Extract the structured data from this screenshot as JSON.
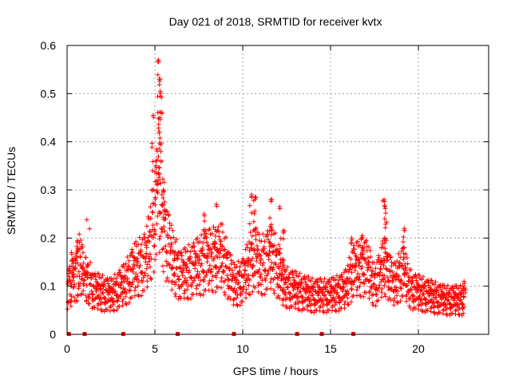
{
  "chart_data": {
    "type": "scatter",
    "title": "Day 021 of 2018, SRMTID for receiver kvtx",
    "xlabel": "GPS time / hours",
    "ylabel": "SRMTID / TECUs",
    "xlim": [
      0,
      24
    ],
    "ylim": [
      0,
      0.6
    ],
    "x_ticks": [
      {
        "value": 0,
        "label": "0"
      },
      {
        "value": 5,
        "label": "5"
      },
      {
        "value": 10,
        "label": "10"
      },
      {
        "value": 15,
        "label": "15"
      },
      {
        "value": 20,
        "label": "20"
      }
    ],
    "y_ticks": [
      {
        "value": 0,
        "label": "0"
      },
      {
        "value": 0.1,
        "label": "0.1"
      },
      {
        "value": 0.2,
        "label": "0.2"
      },
      {
        "value": 0.3,
        "label": "0.3"
      },
      {
        "value": 0.4,
        "label": "0.4"
      },
      {
        "value": 0.5,
        "label": "0.5"
      },
      {
        "value": 0.6,
        "label": "0.6"
      }
    ],
    "grid": true,
    "marker": "+",
    "series_color": "#ff0000",
    "baseline_markers_x": [
      0.1,
      1.0,
      3.2,
      6.3,
      9.5,
      13.1,
      14.5,
      16.3
    ],
    "envelope": [
      {
        "x": 0.0,
        "y": 0.09
      },
      {
        "x": 0.5,
        "y": 0.12
      },
      {
        "x": 0.8,
        "y": 0.14
      },
      {
        "x": 1.5,
        "y": 0.09
      },
      {
        "x": 2.5,
        "y": 0.08
      },
      {
        "x": 3.2,
        "y": 0.1
      },
      {
        "x": 3.8,
        "y": 0.13
      },
      {
        "x": 4.5,
        "y": 0.15
      },
      {
        "x": 4.9,
        "y": 0.22
      },
      {
        "x": 5.2,
        "y": 0.3
      },
      {
        "x": 5.6,
        "y": 0.2
      },
      {
        "x": 6.0,
        "y": 0.15
      },
      {
        "x": 6.5,
        "y": 0.12
      },
      {
        "x": 7.0,
        "y": 0.13
      },
      {
        "x": 8.0,
        "y": 0.15
      },
      {
        "x": 8.8,
        "y": 0.16
      },
      {
        "x": 9.5,
        "y": 0.1
      },
      {
        "x": 10.0,
        "y": 0.11
      },
      {
        "x": 10.6,
        "y": 0.16
      },
      {
        "x": 11.0,
        "y": 0.14
      },
      {
        "x": 11.7,
        "y": 0.16
      },
      {
        "x": 12.3,
        "y": 0.1
      },
      {
        "x": 13.0,
        "y": 0.09
      },
      {
        "x": 14.0,
        "y": 0.08
      },
      {
        "x": 15.0,
        "y": 0.08
      },
      {
        "x": 15.8,
        "y": 0.09
      },
      {
        "x": 16.3,
        "y": 0.13
      },
      {
        "x": 17.0,
        "y": 0.14
      },
      {
        "x": 17.5,
        "y": 0.1
      },
      {
        "x": 18.1,
        "y": 0.14
      },
      {
        "x": 18.6,
        "y": 0.1
      },
      {
        "x": 19.1,
        "y": 0.13
      },
      {
        "x": 19.6,
        "y": 0.09
      },
      {
        "x": 20.5,
        "y": 0.08
      },
      {
        "x": 21.5,
        "y": 0.07
      },
      {
        "x": 22.6,
        "y": 0.07
      }
    ],
    "spikes": [
      {
        "x": 0.25,
        "y": 0.17
      },
      {
        "x": 0.6,
        "y": 0.195
      },
      {
        "x": 4.9,
        "y": 0.455
      },
      {
        "x": 5.05,
        "y": 0.35
      },
      {
        "x": 5.2,
        "y": 0.57
      },
      {
        "x": 5.25,
        "y": 0.53
      },
      {
        "x": 5.3,
        "y": 0.505
      },
      {
        "x": 5.28,
        "y": 0.45
      },
      {
        "x": 5.5,
        "y": 0.3
      },
      {
        "x": 7.8,
        "y": 0.25
      },
      {
        "x": 8.5,
        "y": 0.27
      },
      {
        "x": 10.5,
        "y": 0.29
      },
      {
        "x": 10.7,
        "y": 0.285
      },
      {
        "x": 11.6,
        "y": 0.28
      },
      {
        "x": 12.1,
        "y": 0.265
      },
      {
        "x": 12.3,
        "y": 0.215
      },
      {
        "x": 16.2,
        "y": 0.2
      },
      {
        "x": 16.8,
        "y": 0.205
      },
      {
        "x": 18.05,
        "y": 0.28
      },
      {
        "x": 18.1,
        "y": 0.265
      },
      {
        "x": 19.2,
        "y": 0.22
      },
      {
        "x": 22.6,
        "y": 0.11
      }
    ]
  }
}
